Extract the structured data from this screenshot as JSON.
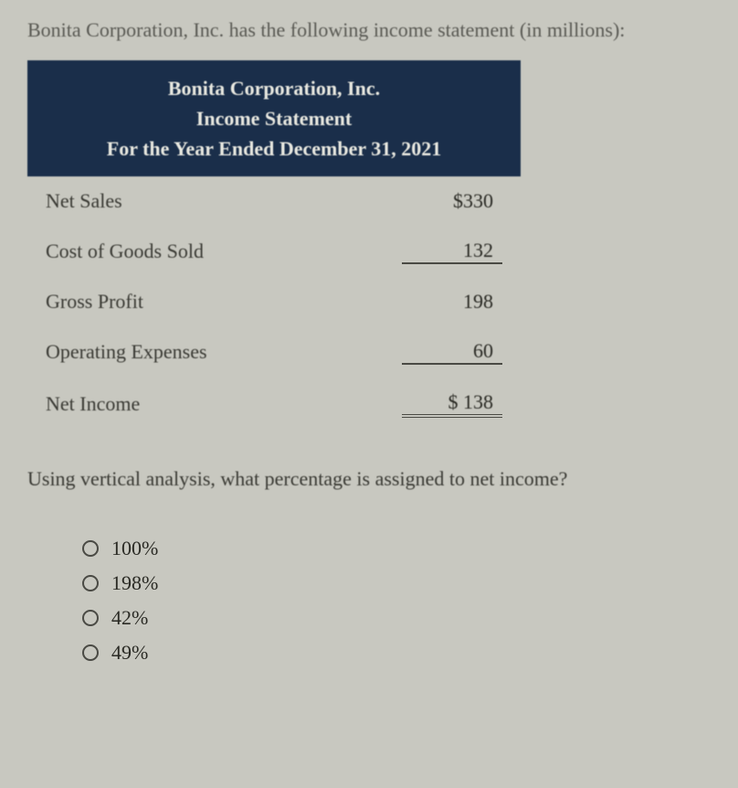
{
  "intro": "Bonita Corporation, Inc. has the following income statement (in millions):",
  "table": {
    "header": {
      "line1": "Bonita Corporation, Inc.",
      "line2": "Income Statement",
      "line3": "For the Year Ended December 31, 2021"
    },
    "rows": [
      {
        "label": "Net Sales",
        "value": "$330",
        "underline": "none"
      },
      {
        "label": "Cost of Goods Sold",
        "value": "132",
        "underline": "single"
      },
      {
        "label": "Gross Profit",
        "value": "198",
        "underline": "none"
      },
      {
        "label": "Operating Expenses",
        "value": "60",
        "underline": "single"
      },
      {
        "label": "Net Income",
        "value": "$ 138",
        "underline": "double"
      }
    ]
  },
  "question": "Using vertical analysis, what percentage is assigned to net income?",
  "options": [
    {
      "label": "100%"
    },
    {
      "label": "198%"
    },
    {
      "label": "42%"
    },
    {
      "label": "49%"
    }
  ],
  "colors": {
    "header_bg": "#1a2e4a",
    "header_text": "#e8e8e0",
    "body_bg": "#c8c8c0",
    "text": "#3a3a34"
  }
}
